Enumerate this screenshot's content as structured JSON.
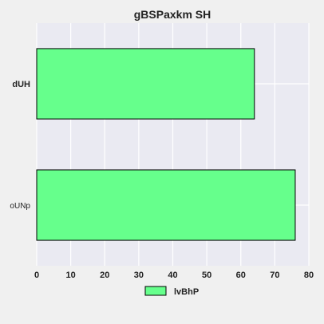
{
  "chart_data": {
    "type": "bar",
    "orientation": "horizontal",
    "title": "gBSPaxkm SH",
    "xlabel": "",
    "ylabel": "",
    "categories": [
      "dUH",
      "oUNp"
    ],
    "category_label_weight": [
      "bold",
      "normal"
    ],
    "series": [
      {
        "name": "lvBhP",
        "values": [
          64,
          76
        ],
        "color": "#66ff8c"
      }
    ],
    "xlim": [
      0,
      80
    ],
    "xticks": [
      0,
      10,
      20,
      30,
      40,
      50,
      60,
      70,
      80
    ],
    "grid": true,
    "legend_position": "bottom-center",
    "colors": {
      "plot_background": "#eaeaf2",
      "page_background": "#f0f0f0",
      "bar_edge": "#000000",
      "grid": "#ffffff"
    }
  }
}
